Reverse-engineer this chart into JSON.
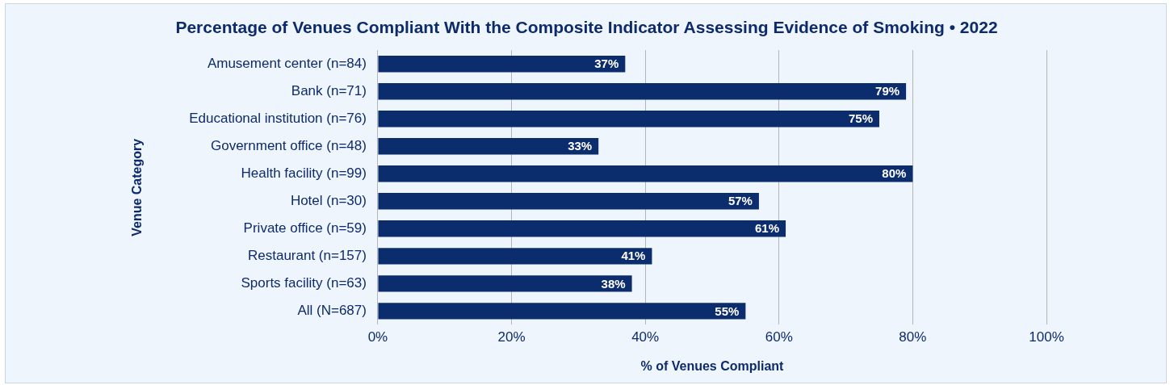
{
  "chart_data": {
    "type": "bar",
    "orientation": "horizontal",
    "title": "Percentage of Venues Compliant With the Composite Indicator Assessing Evidence of Smoking • 2022",
    "xlabel": "% of Venues Compliant",
    "ylabel": "Venue Category",
    "categories": [
      "Amusement center (n=84)",
      "Bank (n=71)",
      "Educational institution (n=76)",
      "Government office (n=48)",
      "Health facility (n=99)",
      "Hotel (n=30)",
      "Private office (n=59)",
      "Restaurant (n=157)",
      "Sports facility (n=63)",
      "All (N=687)"
    ],
    "values": [
      37,
      79,
      75,
      33,
      80,
      57,
      61,
      41,
      38,
      55
    ],
    "value_labels": [
      "37%",
      "79%",
      "75%",
      "33%",
      "80%",
      "57%",
      "61%",
      "41%",
      "38%",
      "55%"
    ],
    "color": "#0b2d6e",
    "xlim": [
      0,
      100
    ],
    "xticks": [
      {
        "value": 0,
        "label": "0%"
      },
      {
        "value": 20,
        "label": "20%"
      },
      {
        "value": 40,
        "label": "40%"
      },
      {
        "value": 60,
        "label": "60%"
      },
      {
        "value": 80,
        "label": "80%"
      },
      {
        "value": 100,
        "label": "100%"
      }
    ],
    "grid": "x",
    "legend": false
  }
}
